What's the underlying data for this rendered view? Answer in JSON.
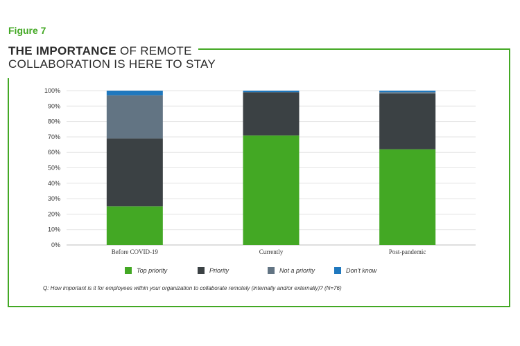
{
  "figure_label": "Figure 7",
  "title": {
    "bold": "THE IMPORTANCE",
    "rest_line1": " OF REMOTE",
    "line2": "COLLABORATION IS HERE TO STAY"
  },
  "footnote": "Q: How important is it for employees within your organization to collaborate remotely (internally and/or externally)? (N=76)",
  "chart_data": {
    "type": "bar",
    "stacked": true,
    "categories": [
      "Before COVID-19",
      "Currently",
      "Post-pandemic"
    ],
    "series": [
      {
        "name": "Top priority",
        "color": "#43a824",
        "values": [
          25,
          71,
          62
        ]
      },
      {
        "name": "Priority",
        "color": "#3b4144",
        "values": [
          44,
          28,
          36
        ]
      },
      {
        "name": "Not a priority",
        "color": "#627483",
        "values": [
          28,
          0,
          1
        ]
      },
      {
        "name": "Don't know",
        "color": "#1f78be",
        "values": [
          3,
          1,
          1
        ]
      }
    ],
    "ylim": [
      0,
      100
    ],
    "yticks": [
      "0%",
      "10%",
      "20%",
      "30%",
      "40%",
      "50%",
      "60%",
      "70%",
      "80%",
      "90%",
      "100%"
    ],
    "ytick_values": [
      0,
      10,
      20,
      30,
      40,
      50,
      60,
      70,
      80,
      90,
      100
    ],
    "grid": true,
    "legend_position": "bottom"
  }
}
